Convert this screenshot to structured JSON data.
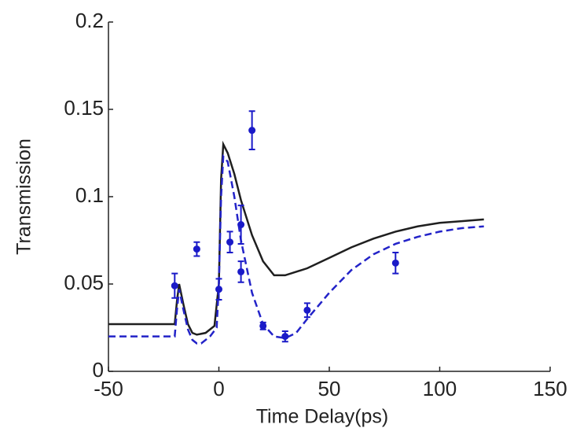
{
  "chart_data": {
    "type": "line",
    "x_label": "Time Delay(ps)",
    "y_label": "Transmission",
    "xlim": [
      -50,
      150
    ],
    "ylim": [
      0,
      0.2
    ],
    "xticks": [
      -50,
      0,
      50,
      100,
      150
    ],
    "yticks": [
      0,
      0.05,
      0.1,
      0.15,
      0.2
    ],
    "series": [
      {
        "type": "line",
        "style": "solid",
        "color": "#1f1f1f",
        "x": [
          -50,
          -20,
          -19,
          -18,
          -16,
          -14,
          -12,
          -10,
          -6,
          -2,
          0,
          1,
          2,
          4,
          7,
          10,
          15,
          20,
          25,
          30,
          40,
          50,
          60,
          70,
          80,
          90,
          100,
          110,
          120
        ],
        "values": [
          0.027,
          0.027,
          0.04,
          0.05,
          0.038,
          0.027,
          0.022,
          0.021,
          0.022,
          0.026,
          0.05,
          0.11,
          0.13,
          0.125,
          0.113,
          0.098,
          0.078,
          0.063,
          0.055,
          0.055,
          0.059,
          0.065,
          0.071,
          0.076,
          0.08,
          0.083,
          0.085,
          0.086,
          0.087
        ]
      },
      {
        "type": "line",
        "style": "dashed",
        "color": "#2323c8",
        "x": [
          -50,
          -20,
          -19,
          -18,
          -16,
          -14,
          -12,
          -10,
          -8,
          -4,
          -1,
          0,
          1,
          2,
          4,
          7,
          10,
          15,
          20,
          25,
          30,
          35,
          40,
          50,
          60,
          70,
          80,
          90,
          100,
          110,
          120
        ],
        "values": [
          0.02,
          0.02,
          0.035,
          0.047,
          0.035,
          0.024,
          0.018,
          0.016,
          0.016,
          0.02,
          0.025,
          0.05,
          0.1,
          0.123,
          0.12,
          0.1,
          0.075,
          0.045,
          0.027,
          0.02,
          0.019,
          0.022,
          0.03,
          0.045,
          0.058,
          0.067,
          0.073,
          0.077,
          0.08,
          0.082,
          0.083
        ]
      },
      {
        "type": "scatter",
        "color": "#1a1ac8",
        "x": [
          -20,
          -10,
          0,
          5,
          10,
          10,
          15,
          20,
          30,
          40,
          80
        ],
        "values": [
          0.049,
          0.07,
          0.047,
          0.074,
          0.084,
          0.057,
          0.138,
          0.026,
          0.02,
          0.035,
          0.062
        ],
        "errors": [
          0.007,
          0.004,
          0.006,
          0.006,
          0.011,
          0.006,
          0.011,
          0.002,
          0.003,
          0.004,
          0.006
        ]
      }
    ]
  }
}
